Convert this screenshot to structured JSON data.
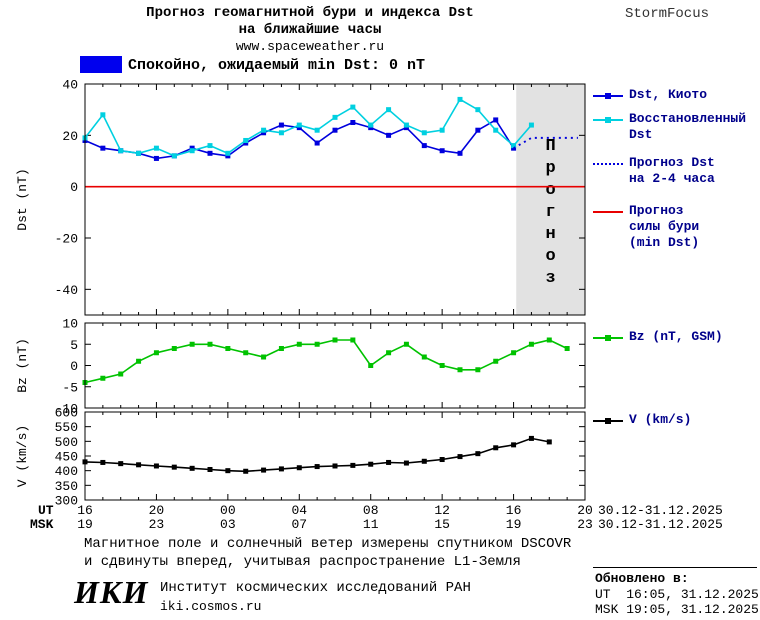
{
  "header": {
    "title_line1": "Прогноз геомагнитной бури и индекса Dst",
    "title_line2": "на ближайшие часы",
    "site": "www.spaceweather.ru",
    "brand": "StormFocus"
  },
  "status": {
    "label": "Спокойно, ожидаемый min Dst: 0 nT",
    "box_color": "#0000ee"
  },
  "chart_data": [
    {
      "type": "line",
      "ylabel": "Dst (nT)",
      "ylim": [
        -50,
        40
      ],
      "yticks": [
        40,
        20,
        0,
        -20,
        -40
      ],
      "xlim": [
        0,
        28
      ],
      "grid": false,
      "forecast_region": [
        24.15,
        28
      ],
      "forecast_region_color": "#e2e2e2",
      "forecast_watermark": "Прогноз",
      "series": [
        {
          "id": "dst-kyoto",
          "name": "Dst, Киото",
          "color": "#0000dd",
          "style": "solid",
          "marker": "square",
          "x": [
            0,
            1,
            2,
            3,
            4,
            5,
            6,
            7,
            8,
            9,
            10,
            11,
            12,
            13,
            14,
            15,
            16,
            17,
            18,
            19,
            20,
            21,
            22,
            23,
            24
          ],
          "y": [
            18,
            15,
            14,
            13,
            11,
            12,
            15,
            13,
            12,
            17,
            21,
            24,
            23,
            17,
            22,
            25,
            23,
            20,
            23,
            16,
            14,
            13,
            22,
            26,
            15
          ]
        },
        {
          "id": "dst-restored",
          "name": "Восстановленный Dst",
          "color": "#00d0e0",
          "style": "solid",
          "marker": "square",
          "x": [
            0,
            1,
            2,
            3,
            4,
            5,
            6,
            7,
            8,
            9,
            10,
            11,
            12,
            13,
            14,
            15,
            16,
            17,
            18,
            19,
            20,
            21,
            22,
            23,
            24,
            25
          ],
          "y": [
            19,
            28,
            14,
            13,
            15,
            12,
            14,
            16,
            13,
            18,
            22,
            21,
            24,
            22,
            27,
            31,
            24,
            30,
            24,
            21,
            22,
            34,
            30,
            22,
            16,
            24
          ]
        },
        {
          "id": "dst-forecast",
          "name": "Прогноз Dst на 2-4 часа",
          "color": "#0000dd",
          "style": "dotted",
          "x": [
            24,
            25,
            26,
            27,
            27.6
          ],
          "y": [
            15,
            19,
            19,
            19,
            19
          ]
        },
        {
          "id": "storm-level",
          "name": "Прогноз силы бури (min Dst)",
          "color": "#e80000",
          "style": "solid",
          "x": [
            0,
            28
          ],
          "y": [
            0,
            0
          ]
        }
      ]
    },
    {
      "type": "line",
      "ylabel": "Bz (nT)",
      "ylim": [
        -10,
        10
      ],
      "yticks": [
        10,
        5,
        0,
        -5,
        -10
      ],
      "xlim": [
        0,
        28
      ],
      "grid": false,
      "series": [
        {
          "id": "bz",
          "name": "Bz (nT, GSM)",
          "color": "#00c200",
          "style": "solid",
          "marker": "square",
          "x": [
            0,
            1,
            2,
            3,
            4,
            5,
            6,
            7,
            8,
            9,
            10,
            11,
            12,
            13,
            14,
            15,
            16,
            17,
            18,
            19,
            20,
            21,
            22,
            23,
            24,
            25,
            26,
            27
          ],
          "y": [
            -4,
            -3,
            -2,
            1,
            3,
            4,
            5,
            5,
            4,
            3,
            2,
            4,
            5,
            5,
            6,
            6,
            0,
            3,
            5,
            2,
            0,
            -1,
            -1,
            1,
            3,
            5,
            6,
            4
          ]
        }
      ]
    },
    {
      "type": "line",
      "ylabel": "V (km/s)",
      "ylim": [
        300,
        600
      ],
      "yticks": [
        600,
        550,
        500,
        450,
        400,
        350,
        300
      ],
      "xlim": [
        0,
        28
      ],
      "grid": false,
      "series": [
        {
          "id": "v",
          "name": "V (km/s)",
          "color": "#000000",
          "style": "solid",
          "marker": "square",
          "x": [
            0,
            1,
            2,
            3,
            4,
            5,
            6,
            7,
            8,
            9,
            10,
            11,
            12,
            13,
            14,
            15,
            16,
            17,
            18,
            19,
            20,
            21,
            22,
            23,
            24,
            25,
            26
          ],
          "y": [
            430,
            428,
            424,
            420,
            416,
            412,
            408,
            404,
            400,
            398,
            402,
            406,
            410,
            414,
            416,
            418,
            422,
            428,
            426,
            432,
            438,
            448,
            458,
            478,
            488,
            510,
            498
          ]
        }
      ]
    }
  ],
  "xaxis": {
    "hours": [
      0,
      4,
      8,
      12,
      16,
      20,
      24,
      28
    ],
    "ut_label": "UT",
    "msk_label": "MSK",
    "ut_ticks": [
      "16",
      "20",
      "00",
      "04",
      "08",
      "12",
      "16",
      "20"
    ],
    "msk_ticks": [
      "19",
      "23",
      "03",
      "07",
      "11",
      "15",
      "19",
      "23"
    ],
    "ut_date": "30.12-31.12.2025",
    "msk_date": "30.12-31.12.2025"
  },
  "legend": {
    "text_color": "#00008b",
    "kyoto": "Dst, Киото",
    "restored_1": "Восстановленный",
    "restored_2": "Dst",
    "forecast_1": "Прогноз Dst",
    "forecast_2": "на 2-4 часа",
    "storm_1": "Прогноз",
    "storm_2": "силы бури",
    "storm_3": "(min Dst)",
    "bz": "Bz (nT, GSM)",
    "v": "V (km/s)"
  },
  "footer": {
    "note_line1": "Магнитное поле и солнечный ветер измерены спутником DSCOVR",
    "note_line2": "и сдвинуты вперед, учитывая распространение L1-Земля",
    "logo": "ИКИ",
    "institute": "Институт космических исследований РАН",
    "institute_url": "iki.cosmos.ru",
    "updated_label": "Обновлено в:",
    "updated_ut": "UT  16:05, 31.12.2025",
    "updated_msk": "MSK 19:05, 31.12.2025"
  }
}
